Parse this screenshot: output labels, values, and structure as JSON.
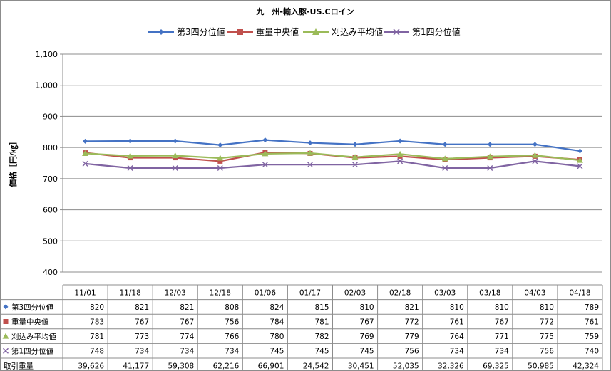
{
  "chart_data": {
    "type": "line",
    "title": "九　州-輸入豚-US.Cロイン",
    "ylabel": "価格［円/㎏］",
    "ylim": [
      400,
      1100
    ],
    "yticks": [
      400,
      500,
      600,
      700,
      800,
      900,
      1000,
      1100
    ],
    "ytick_labels": [
      "400",
      "500",
      "600",
      "700",
      "800",
      "900",
      "1,000",
      "1,100"
    ],
    "grid": true,
    "legend_position": "top",
    "categories": [
      "11/01",
      "11/18",
      "12/03",
      "12/18",
      "01/06",
      "01/17",
      "02/03",
      "02/18",
      "03/03",
      "03/18",
      "04/03",
      "04/18"
    ],
    "series": [
      {
        "name": "第3四分位値",
        "color": "#4472C4",
        "marker": "diamond",
        "values": [
          820,
          821,
          821,
          808,
          824,
          815,
          810,
          821,
          810,
          810,
          810,
          789
        ]
      },
      {
        "name": "重量中央値",
        "color": "#C0504D",
        "marker": "square",
        "values": [
          783,
          767,
          767,
          756,
          784,
          781,
          767,
          772,
          761,
          767,
          772,
          761
        ]
      },
      {
        "name": "刈込み平均値",
        "color": "#9BBB59",
        "marker": "triangle",
        "values": [
          781,
          773,
          774,
          766,
          780,
          782,
          769,
          779,
          764,
          771,
          775,
          759
        ]
      },
      {
        "name": "第1四分位値",
        "color": "#8064A2",
        "marker": "x",
        "values": [
          748,
          734,
          734,
          734,
          745,
          745,
          745,
          756,
          734,
          734,
          756,
          740
        ]
      }
    ],
    "table": {
      "extra_row": {
        "name": "取引重量",
        "values": [
          "39,626",
          "41,177",
          "59,308",
          "62,216",
          "66,901",
          "24,542",
          "30,451",
          "52,035",
          "32,326",
          "69,325",
          "50,985",
          "42,324"
        ]
      }
    }
  }
}
